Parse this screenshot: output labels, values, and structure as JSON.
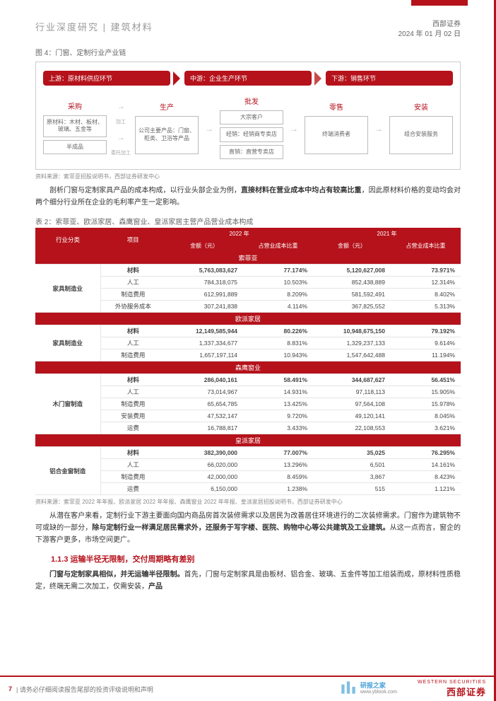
{
  "header": {
    "left": "行业深度研究 | 建筑材料",
    "brand": "西部证券",
    "date": "2024 年 01 月 02 日"
  },
  "fig4": {
    "title": "图 4：门窗、定制行业产业链",
    "bars": [
      {
        "label": "上游：原材料供应环节"
      },
      {
        "label": "中游：企业生产环节"
      },
      {
        "label": "下游：销售环节"
      }
    ],
    "cols": {
      "c1": {
        "t": "采购",
        "cells": [
          "原材料：木材、板材、玻璃、五金等",
          "半成品"
        ]
      },
      "arr1": [
        "加工",
        "委托加工"
      ],
      "c2": {
        "t": "生产",
        "cells": [
          "公司主要产品：门窗、柜类、卫浴等产品"
        ]
      },
      "c3": {
        "t": "批发",
        "cells": [
          "大宗客户",
          "经销：经销商专卖店",
          "直销：直营专卖店"
        ]
      },
      "c4": {
        "t": "零售",
        "cells": [
          "终端消费者"
        ]
      },
      "c5": {
        "t": "安装",
        "cells": [
          "组合安装服务"
        ]
      }
    },
    "source": "资料来源：索菲亚招股说明书，西部证券研发中心"
  },
  "para1": "剖析门窗与定制家具产品的成本构成，以行业头部企业为例，直接材料在营业成本中均占有较高比重，因此原材料价格的变动均会对两个细分行业所在企业的毛利率产生一定影响。",
  "table2": {
    "title": "表 2：索菲亚、欧派家居、森鹰窗业、皇派家居主营产品营业成本构成",
    "cols": [
      "行业分类",
      "项目",
      "金额（元）",
      "占营业成本比重",
      "金额（元）",
      "占营业成本比重"
    ],
    "yearcols": [
      "",
      "",
      "2022 年",
      "",
      "2021 年",
      ""
    ],
    "groups": [
      {
        "name": "索菲亚",
        "cat": "家具制造业",
        "rows": [
          {
            "item": "材料",
            "a": "5,763,083,627",
            "b": "77.174%",
            "c": "5,120,627,008",
            "d": "73.971%",
            "mat": true
          },
          {
            "item": "人工",
            "a": "784,318,075",
            "b": "10.503%",
            "c": "852,438,889",
            "d": "12.314%"
          },
          {
            "item": "制造费用",
            "a": "612,991,889",
            "b": "8.209%",
            "c": "581,592,491",
            "d": "8.402%"
          },
          {
            "item": "外协服务成本",
            "a": "307,241,838",
            "b": "4.114%",
            "c": "367,825,552",
            "d": "5.313%"
          }
        ]
      },
      {
        "name": "欧派家居",
        "cat": "家具制造业",
        "rows": [
          {
            "item": "材料",
            "a": "12,149,585,944",
            "b": "80.226%",
            "c": "10,948,675,150",
            "d": "79.192%",
            "mat": true
          },
          {
            "item": "人工",
            "a": "1,337,334,677",
            "b": "8.831%",
            "c": "1,329,237,133",
            "d": "9.614%"
          },
          {
            "item": "制造费用",
            "a": "1,657,197,114",
            "b": "10.943%",
            "c": "1,547,642,488",
            "d": "11.194%"
          }
        ]
      },
      {
        "name": "森鹰窗业",
        "cat": "木门窗制造",
        "rows": [
          {
            "item": "材料",
            "a": "286,040,161",
            "b": "58.491%",
            "c": "344,687,627",
            "d": "56.451%",
            "mat": true
          },
          {
            "item": "人工",
            "a": "73,014,967",
            "b": "14.931%",
            "c": "97,118,113",
            "d": "15.905%"
          },
          {
            "item": "制造费用",
            "a": "65,654,785",
            "b": "13.425%",
            "c": "97,564,108",
            "d": "15.978%"
          },
          {
            "item": "安装费用",
            "a": "47,532,147",
            "b": "9.720%",
            "c": "49,120,141",
            "d": "8.045%"
          },
          {
            "item": "运费",
            "a": "16,788,817",
            "b": "3.433%",
            "c": "22,108,553",
            "d": "3.621%"
          }
        ]
      },
      {
        "name": "皇派家居",
        "cat": "铝合金窗制造",
        "rows": [
          {
            "item": "材料",
            "a": "382,390,000",
            "b": "77.007%",
            "c": "35,025",
            "d": "76.295%",
            "mat": true
          },
          {
            "item": "人工",
            "a": "66,020,000",
            "b": "13.296%",
            "c": "6,501",
            "d": "14.161%"
          },
          {
            "item": "制造费用",
            "a": "42,000,000",
            "b": "8.459%",
            "c": "3,867",
            "d": "8.423%"
          },
          {
            "item": "运费",
            "a": "6,150,000",
            "b": "1.238%",
            "c": "515",
            "d": "1.121%"
          }
        ]
      }
    ],
    "source": "资料来源：索菲亚 2022 年年报、欧派家居 2022 年年报、森鹰窗业 2022 年年报、皇派家居招股说明书，西部证券研发中心"
  },
  "para2": "从潜在客户来看，定制行业下游主要面向国内商品房首次装修需求以及居民为改善居住环境进行的二次装修需求。门窗作为建筑物不可或缺的一部分，除与定制行业一样满足居民需求外，还服务于写字楼、医院、购物中心等公共建筑及工业建筑。从这一点而言，窗企的下游客户更多，市场空间更广。",
  "sec113": "1.1.3 运输半径无限制，交付周期略有差别",
  "para3": "门窗与定制家具相似，并无运输半径限制。首先，门窗与定制家具是由板材、铝合金、玻璃、五金件等加工组装而成，原材料性质稳定，终端无需二次加工，仅需安装，产品",
  "footer": {
    "page": "7",
    "note": "| 请务必仔细阅读报告尾部的投资评级说明和声明",
    "wm": "研报之家",
    "wm_url": "www.yblook.com",
    "logo_en": "WESTERN SECURITIES",
    "logo_cn": "西部证券"
  }
}
